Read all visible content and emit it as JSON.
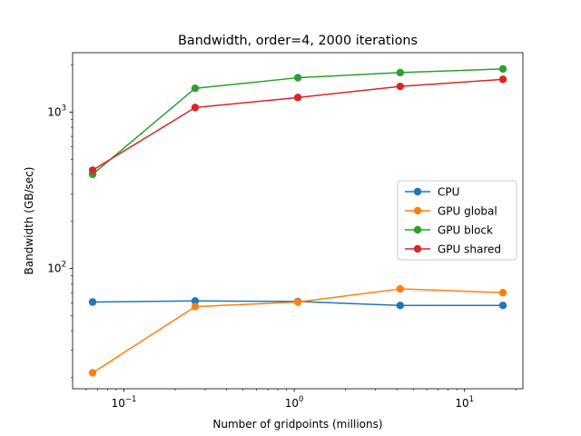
{
  "chart_data": {
    "type": "line",
    "title": "Bandwidth, order=4, 2000 iterations",
    "xlabel": "Number of gridpoints (millions)",
    "ylabel": "Bandwidth (GB/sec)",
    "xscale": "log",
    "yscale": "log",
    "xlim": [
      0.05,
      22
    ],
    "ylim": [
      17,
      2400
    ],
    "x_ticks": [
      {
        "value": 0.1,
        "base": "10",
        "exp": "−1"
      },
      {
        "value": 1,
        "base": "10",
        "exp": "0"
      },
      {
        "value": 10,
        "base": "10",
        "exp": "1"
      }
    ],
    "y_ticks": [
      {
        "value": 100,
        "base": "10",
        "exp": "2"
      },
      {
        "value": 1000,
        "base": "10",
        "exp": "3"
      }
    ],
    "x": [
      0.0655,
      0.262,
      1.05,
      4.19,
      16.8
    ],
    "series": [
      {
        "name": "CPU",
        "color": "#1f77b4",
        "values": [
          61,
          62,
          61.5,
          58,
          58
        ]
      },
      {
        "name": "GPU global",
        "color": "#ff7f0e",
        "values": [
          21.5,
          57,
          61,
          74,
          70
        ]
      },
      {
        "name": "GPU block",
        "color": "#2ca02c",
        "values": [
          400,
          1420,
          1660,
          1790,
          1890
        ]
      },
      {
        "name": "GPU shared",
        "color": "#d62728",
        "values": [
          425,
          1070,
          1240,
          1460,
          1620
        ]
      }
    ],
    "grid": false,
    "legend_position": "center-right"
  }
}
